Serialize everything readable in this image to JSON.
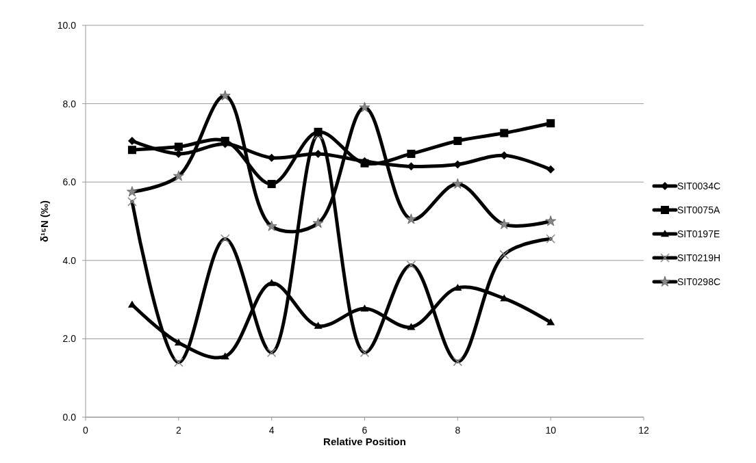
{
  "chart_data": {
    "type": "line",
    "xlabel": "Relative Position",
    "ylabel": "δ¹⁵N (‰)",
    "x": [
      1,
      2,
      3,
      4,
      5,
      6,
      7,
      8,
      9,
      10
    ],
    "series": [
      {
        "name": "SIT0034C",
        "color": "#000000",
        "marker": "diamond",
        "values": [
          7.05,
          6.72,
          6.97,
          6.62,
          6.72,
          6.53,
          6.4,
          6.45,
          6.68,
          6.32
        ]
      },
      {
        "name": "SIT0075A",
        "color": "#000000",
        "marker": "square",
        "values": [
          6.82,
          6.9,
          7.05,
          5.95,
          7.28,
          6.48,
          6.72,
          7.05,
          7.25,
          7.5
        ]
      },
      {
        "name": "SIT0197E",
        "color": "#000000",
        "marker": "triangle",
        "values": [
          2.87,
          1.9,
          1.55,
          3.42,
          2.33,
          2.77,
          2.3,
          3.3,
          3.03,
          2.42
        ]
      },
      {
        "name": "SIT0219H",
        "color": "#000000",
        "marker": "cross",
        "values": [
          5.5,
          1.4,
          4.55,
          1.65,
          7.2,
          1.65,
          3.88,
          1.42,
          4.15,
          4.55
        ]
      },
      {
        "name": "SIT0298C",
        "color": "#000000",
        "marker": "star",
        "values": [
          5.75,
          6.15,
          8.2,
          4.87,
          4.95,
          7.9,
          5.05,
          5.95,
          4.92,
          5.0
        ]
      }
    ],
    "xlim": [
      0,
      12
    ],
    "xticks": [
      0,
      2,
      4,
      6,
      8,
      10,
      12
    ],
    "ylim": [
      0,
      10
    ],
    "yticks": [
      {
        "value": 0,
        "label": "0.0"
      },
      {
        "value": 2,
        "label": "2.0"
      },
      {
        "value": 4,
        "label": "4.0"
      },
      {
        "value": 6,
        "label": "6.0"
      },
      {
        "value": 8,
        "label": "8.0"
      },
      {
        "value": 10,
        "label": "10.0"
      }
    ],
    "grid": "y",
    "legend": "right",
    "line_style": "solid"
  }
}
